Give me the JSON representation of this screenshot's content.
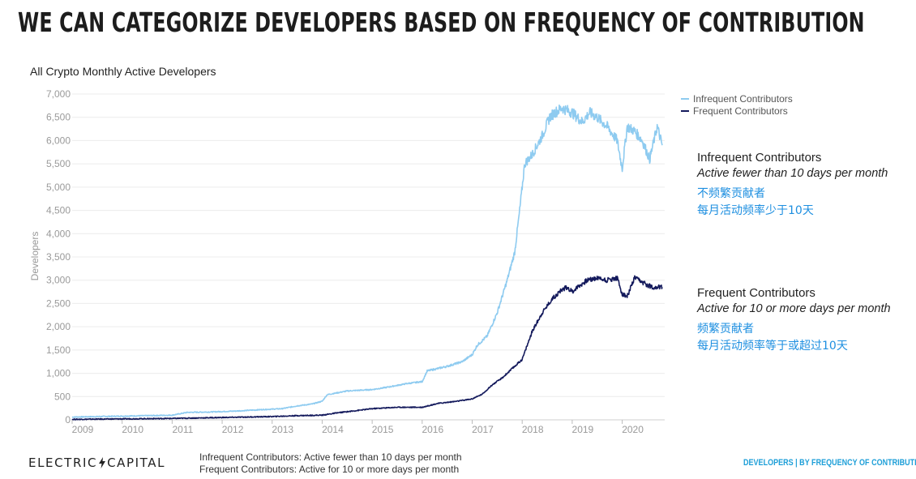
{
  "slide": {
    "title": "WE CAN CATEGORIZE DEVELOPERS BASED ON FREQUENCY OF CONTRIBUTION",
    "logo_left": "ELECTRIC",
    "logo_right": "CAPITAL",
    "footnote_1": "Infrequent Contributors: Active fewer than 10 days per month",
    "footnote_2": "Frequent Contributors: Active for 10 or more days per month",
    "footer_tag": "DEVELOPERS | BY FREQUENCY OF CONTRIBUTION"
  },
  "annotations": {
    "infrequent": {
      "name": "Infrequent Contributors",
      "definition": "Active fewer than 10 days per month",
      "cn_line1": "不频繁贡献者",
      "cn_line2": "每月活动频率少于10天"
    },
    "frequent": {
      "name": "Frequent Contributors",
      "definition": "Active for 10 or more days per month",
      "cn_line1": "频繁贡献者",
      "cn_line2": "每月活动频率等于或超过10天"
    }
  },
  "chart_data": {
    "type": "line",
    "title": "All Crypto Monthly Active Developers",
    "xlabel": "",
    "ylabel": "Developers",
    "xlim": [
      2009,
      2020.85
    ],
    "ylim": [
      0,
      7000
    ],
    "yticks": [
      0,
      500,
      1000,
      1500,
      2000,
      2500,
      3000,
      3500,
      4000,
      4500,
      5000,
      5500,
      6000,
      6500,
      7000
    ],
    "ytick_labels": [
      "0",
      "500",
      "1,000",
      "1,500",
      "2,000",
      "2,500",
      "3,000",
      "3,500",
      "4,000",
      "4,500",
      "5,000",
      "5,500",
      "6,000",
      "6,500",
      "7,000"
    ],
    "xticks": [
      2009,
      2010,
      2011,
      2012,
      2013,
      2014,
      2015,
      2016,
      2017,
      2018,
      2019,
      2020
    ],
    "xtick_labels": [
      "2009",
      "2010",
      "2011",
      "2012",
      "2013",
      "2014",
      "2015",
      "2016",
      "2017",
      "2018",
      "2019",
      "2020"
    ],
    "grid": true,
    "legend_position": "top-right",
    "series": [
      {
        "name": "Infrequent Contributors",
        "color": "#8ecbf0",
        "x": [
          2009,
          2009.5,
          2010,
          2010.5,
          2011,
          2011.3,
          2011.8,
          2012.3,
          2012.8,
          2013.2,
          2013.5,
          2013.8,
          2014,
          2014.1,
          2014.5,
          2015,
          2015.3,
          2015.7,
          2016,
          2016.1,
          2016.5,
          2016.8,
          2017,
          2017.1,
          2017.3,
          2017.5,
          2017.7,
          2017.85,
          2017.95,
          2018.05,
          2018.2,
          2018.4,
          2018.55,
          2018.65,
          2018.8,
          2019,
          2019.2,
          2019.35,
          2019.5,
          2019.7,
          2019.9,
          2020,
          2020.1,
          2020.25,
          2020.4,
          2020.55,
          2020.7,
          2020.8
        ],
        "y": [
          60,
          70,
          80,
          90,
          100,
          160,
          170,
          190,
          220,
          240,
          300,
          340,
          400,
          540,
          620,
          650,
          700,
          780,
          820,
          1050,
          1150,
          1250,
          1400,
          1600,
          1800,
          2300,
          3000,
          3600,
          4500,
          5500,
          5700,
          6100,
          6500,
          6600,
          6700,
          6600,
          6400,
          6600,
          6500,
          6300,
          6000,
          5400,
          6300,
          6200,
          6000,
          5600,
          6300,
          5900
        ]
      },
      {
        "name": "Frequent Contributors",
        "color": "#141a5c",
        "x": [
          2009,
          2010,
          2011,
          2011.5,
          2012,
          2012.5,
          2013,
          2013.5,
          2014,
          2014.3,
          2014.7,
          2015,
          2015.5,
          2016,
          2016.3,
          2016.7,
          2017,
          2017.2,
          2017.4,
          2017.6,
          2017.8,
          2018,
          2018.2,
          2018.4,
          2018.6,
          2018.8,
          2018.9,
          2019,
          2019.1,
          2019.3,
          2019.5,
          2019.7,
          2019.9,
          2020,
          2020.1,
          2020.25,
          2020.4,
          2020.6,
          2020.8
        ],
        "y": [
          10,
          20,
          30,
          40,
          50,
          60,
          70,
          90,
          100,
          150,
          200,
          240,
          270,
          270,
          350,
          400,
          450,
          550,
          750,
          900,
          1100,
          1300,
          1900,
          2300,
          2600,
          2800,
          2850,
          2750,
          2850,
          3000,
          3050,
          3000,
          3050,
          2700,
          2650,
          3050,
          2950,
          2850,
          2850
        ]
      }
    ]
  }
}
